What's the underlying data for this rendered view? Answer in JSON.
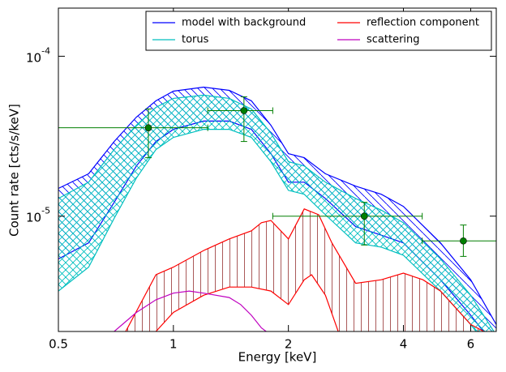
{
  "chart_data": {
    "type": "line",
    "xlabel": "Energy [keV]",
    "ylabel": "Count rate [cts/s/keV]",
    "xscale": "log",
    "yscale": "log",
    "xlim": [
      0.5,
      7.0
    ],
    "ylim": [
      1.9e-06,
      0.0002
    ],
    "xticks": [
      0.5,
      1,
      2,
      4,
      6
    ],
    "yticks": [
      {
        "value": 1e-05,
        "label": "10",
        "exponent": "-5"
      },
      {
        "value": 0.0001,
        "label": "10",
        "exponent": "-4"
      }
    ],
    "legend": "upper right",
    "series": [
      {
        "name": "model with background",
        "color": "#0000ff",
        "hatch": "diagonal",
        "upper": {
          "x": [
            0.5,
            0.6,
            0.7,
            0.8,
            0.9,
            1.0,
            1.2,
            1.4,
            1.6,
            1.8,
            2.0,
            2.2,
            2.5,
            3.0,
            3.5,
            4.0,
            5.0,
            6.0,
            7.0
          ],
          "values": [
            1.49e-05,
            1.84e-05,
            2.93e-05,
            4.16e-05,
            5.26e-05,
            6.05e-05,
            6.41e-05,
            6.12e-05,
            5.26e-05,
            3.7e-05,
            2.46e-05,
            2.32e-05,
            1.84e-05,
            1.54e-05,
            1.37e-05,
            1.15e-05,
            6.8e-06,
            4e-06,
            2.1e-06
          ]
        },
        "lower": {
          "x": [
            0.5,
            0.6,
            0.7,
            0.8,
            0.9,
            1.0,
            1.2,
            1.4,
            1.6,
            1.8,
            2.0,
            2.2,
            2.5,
            3.0,
            3.5,
            4.0,
            5.0,
            6.0,
            7.0
          ],
          "values": [
            5.4e-06,
            6.8e-06,
            1.22e-05,
            2.06e-05,
            2.93e-05,
            3.49e-05,
            3.93e-05,
            3.93e-05,
            3.49e-05,
            2.46e-05,
            1.63e-05,
            1.63e-05,
            1.29e-05,
            8.6e-06,
            7.6e-06,
            6.8e-06,
            4e-06,
            2.4e-06,
            1.5e-06
          ]
        }
      },
      {
        "name": "torus",
        "color": "#00bfbf",
        "hatch": "cross",
        "upper": {
          "x": [
            0.5,
            0.6,
            0.7,
            0.8,
            0.9,
            1.0,
            1.2,
            1.4,
            1.6,
            1.8,
            2.0,
            2.2,
            2.5,
            3.0,
            3.5,
            4.0,
            5.0,
            6.0,
            7.0
          ],
          "values": [
            1.29e-05,
            1.63e-05,
            2.61e-05,
            3.7e-05,
            4.79e-05,
            5.45e-05,
            5.71e-05,
            5.45e-05,
            4.68e-05,
            3.3e-05,
            2.19e-05,
            2.06e-05,
            1.63e-05,
            1.29e-05,
            1.09e-05,
            9.1e-06,
            5.4e-06,
            3.2e-06,
            1.8e-06
          ]
        },
        "lower": {
          "x": [
            0.5,
            0.6,
            0.7,
            0.8,
            0.9,
            1.0,
            1.2,
            1.4,
            1.6,
            1.8,
            2.0,
            2.2,
            2.5,
            3.0,
            3.5,
            4.0,
            5.0,
            6.0,
            7.0
          ],
          "values": [
            3.4e-06,
            4.8e-06,
            9.7e-06,
            1.73e-05,
            2.61e-05,
            3.11e-05,
            3.49e-05,
            3.49e-05,
            3.11e-05,
            2.19e-05,
            1.45e-05,
            1.37e-05,
            1.02e-05,
            6.8e-06,
            6.4e-06,
            5.7e-06,
            3.4e-06,
            2.1e-06,
            1.3e-06
          ]
        }
      },
      {
        "name": "reflection component",
        "color": "#ff0000",
        "hatch": "vertical",
        "hatch_color": "#a04848",
        "upper": {
          "x": [
            0.75,
            0.9,
            1.0,
            1.2,
            1.4,
            1.6,
            1.7,
            1.8,
            2.0,
            2.2,
            2.4,
            2.6,
            3.0,
            3.5,
            4.0,
            4.5,
            5.0,
            6.0,
            6.5
          ],
          "values": [
            1.9e-06,
            4.3e-06,
            4.8e-06,
            6.1e-06,
            7.2e-06,
            8.1e-06,
            9.1e-06,
            9.4e-06,
            7.2e-06,
            1.11e-05,
            1.02e-05,
            6.8e-06,
            3.8e-06,
            4e-06,
            4.4e-06,
            4e-06,
            3.4e-06,
            2.1e-06,
            1.9e-06
          ]
        },
        "lower": {
          "x": [
            0.9,
            1.0,
            1.2,
            1.4,
            1.6,
            1.8,
            2.0,
            2.2,
            2.3,
            2.5,
            2.7
          ],
          "values": [
            1.9e-06,
            2.5e-06,
            3.2e-06,
            3.6e-06,
            3.6e-06,
            3.4e-06,
            2.8e-06,
            4e-06,
            4.3e-06,
            3.2e-06,
            1.9e-06
          ]
        }
      },
      {
        "name": "scattering",
        "color": "#bf00bf",
        "x": [
          0.7,
          0.8,
          0.9,
          1.0,
          1.1,
          1.2,
          1.4,
          1.5,
          1.6,
          1.7,
          1.75
        ],
        "values": [
          1.9e-06,
          2.5e-06,
          3e-06,
          3.3e-06,
          3.4e-06,
          3.3e-06,
          3.1e-06,
          2.8e-06,
          2.4e-06,
          2e-06,
          1.9e-06
        ]
      }
    ],
    "data_points": {
      "color": "#007f00",
      "x": [
        0.86,
        1.53,
        3.16,
        5.74
      ],
      "y": [
        3.57e-05,
        4.57e-05,
        1e-05,
        7e-06
      ],
      "x_low": [
        0.5,
        1.23,
        1.82,
        4.48
      ],
      "x_high": [
        1.23,
        1.82,
        4.48,
        7.0
      ],
      "y_low": [
        2.32e-05,
        2.93e-05,
        6.6e-06,
        5.6e-06
      ],
      "y_high": [
        4.68e-05,
        5.58e-05,
        1.22e-05,
        8.8e-06
      ]
    }
  }
}
